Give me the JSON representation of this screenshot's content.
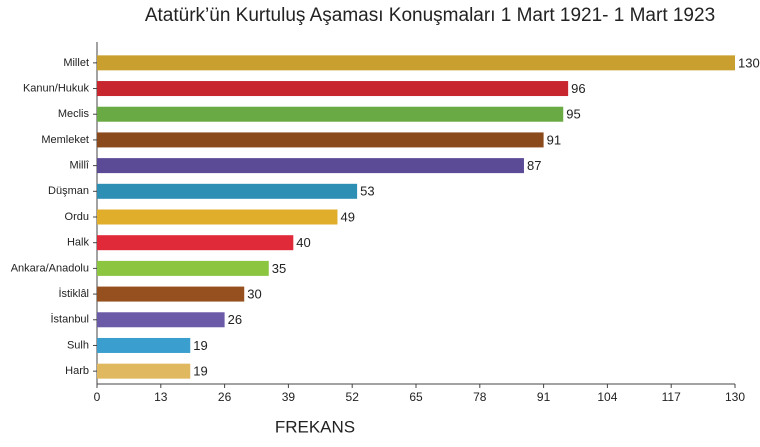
{
  "chart_data": {
    "type": "barh",
    "title": "Atatürk’ün Kurtuluş Aşaması Konuşmaları 1 Mart 1921- 1 Mart 1923",
    "xlabel": "FREKANS",
    "categories": [
      "Millet",
      "Kanun/Hukuk",
      "Meclis",
      "Memleket",
      "Millî",
      "Düşman",
      "Ordu",
      "Halk",
      "Ankara/Anadolu",
      "İstiklâl",
      "İstanbul",
      "Sulh",
      "Harb"
    ],
    "values": [
      130,
      96,
      95,
      91,
      87,
      53,
      49,
      40,
      35,
      30,
      26,
      19,
      19
    ],
    "colors": [
      "#c9a030",
      "#c8262e",
      "#6aaa45",
      "#8b4a1c",
      "#5b4a96",
      "#2e8fb5",
      "#e0ae2a",
      "#e02a3a",
      "#8cc540",
      "#964f1e",
      "#6a5aa8",
      "#3a9fcf",
      "#e0b860"
    ],
    "xlim": [
      0,
      130
    ],
    "xticks": [
      0,
      13,
      26,
      39,
      52,
      65,
      78,
      91,
      104,
      117,
      130
    ],
    "grid": false
  }
}
